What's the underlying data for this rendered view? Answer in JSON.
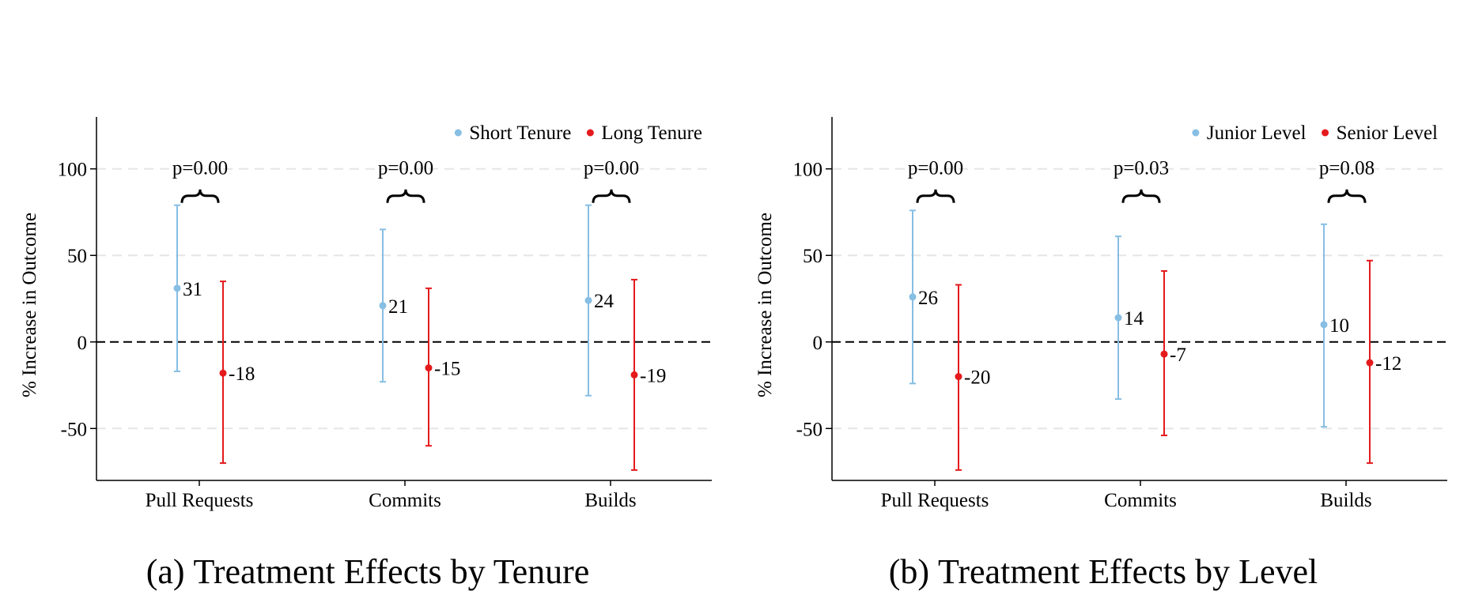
{
  "chart_data": [
    {
      "type": "errorbar",
      "caption_label": "(a)",
      "caption_title": "Treatment Effects by Tenure",
      "xlabel": "",
      "ylabel": "% Increase in Outcome",
      "ylim": [
        -80,
        130
      ],
      "yticks": [
        -50,
        0,
        50,
        100
      ],
      "ytick_labels": [
        "-50",
        "0",
        "50",
        "100"
      ],
      "categories": [
        "Pull Requests",
        "Commits",
        "Builds"
      ],
      "series": [
        {
          "name": "Short Tenure",
          "color": "#87BEE3",
          "values": [
            31,
            21,
            24
          ],
          "lower": [
            -17,
            -23,
            -31
          ],
          "upper": [
            79,
            65,
            79
          ],
          "labels": [
            "31",
            "21",
            "24"
          ]
        },
        {
          "name": "Long Tenure",
          "color": "#E41A1C",
          "values": [
            -18,
            -15,
            -19
          ],
          "lower": [
            -70,
            -60,
            -74
          ],
          "upper": [
            35,
            31,
            36
          ],
          "labels": [
            "-18",
            "-15",
            "-19"
          ]
        }
      ],
      "pvalues": [
        "p=0.00",
        "p=0.00",
        "p=0.00"
      ],
      "reference_line": 0,
      "legend_position": "top-right"
    },
    {
      "type": "errorbar",
      "caption_label": "(b)",
      "caption_title": "Treatment Effects by Level",
      "xlabel": "",
      "ylabel": "% Increase in Outcome",
      "ylim": [
        -80,
        130
      ],
      "yticks": [
        -50,
        0,
        50,
        100
      ],
      "ytick_labels": [
        "-50",
        "0",
        "50",
        "100"
      ],
      "categories": [
        "Pull Requests",
        "Commits",
        "Builds"
      ],
      "series": [
        {
          "name": "Junior Level",
          "color": "#87BEE3",
          "values": [
            26,
            14,
            10
          ],
          "lower": [
            -24,
            -33,
            -49
          ],
          "upper": [
            76,
            61,
            68
          ],
          "labels": [
            "26",
            "14",
            "10"
          ]
        },
        {
          "name": "Senior Level",
          "color": "#E41A1C",
          "values": [
            -20,
            -7,
            -12
          ],
          "lower": [
            -74,
            -54,
            -70
          ],
          "upper": [
            33,
            41,
            47
          ],
          "labels": [
            "-20",
            "-7",
            "-12"
          ]
        }
      ],
      "pvalues": [
        "p=0.00",
        "p=0.03",
        "p=0.08"
      ],
      "reference_line": 0,
      "legend_position": "top-right"
    }
  ]
}
